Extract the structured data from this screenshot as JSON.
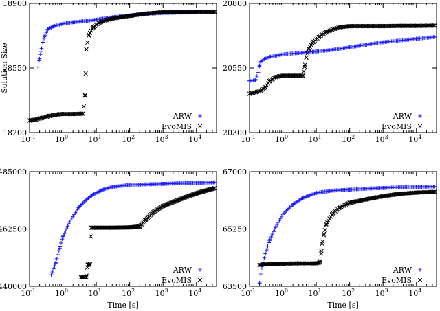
{
  "chart_data": [
    {
      "type": "scatter",
      "title": "",
      "xlabel": "",
      "ylabel": "Solution Size",
      "xscale": "log",
      "xlim": [
        0.1,
        40000
      ],
      "ylim": [
        18200,
        18900
      ],
      "yticks": [
        "18200",
        "18550",
        "18900"
      ],
      "yticks_values": [
        18200,
        18550,
        18900
      ],
      "xticks": [
        "-1",
        "0",
        "1",
        "2",
        "3",
        "4"
      ],
      "legend": [
        "ARW",
        "EvoMIS"
      ],
      "legend_position": "bottom-right",
      "series": [
        {
          "name": "ARW",
          "marker": "+",
          "color": "#1a1aff",
          "points": [
            [
              0.18,
              18555
            ],
            [
              0.2,
              18600
            ],
            [
              0.22,
              18640
            ],
            [
              0.25,
              18690
            ],
            [
              0.28,
              18720
            ],
            [
              0.35,
              18760
            ],
            [
              0.5,
              18775
            ],
            [
              1,
              18790
            ],
            [
              2,
              18798
            ],
            [
              5,
              18805
            ],
            [
              10,
              18812
            ],
            [
              30,
              18825
            ],
            [
              100,
              18835
            ],
            [
              300,
              18843
            ],
            [
              1000,
              18848
            ],
            [
              3000,
              18850
            ],
            [
              10000,
              18851
            ],
            [
              35000,
              18852
            ]
          ]
        },
        {
          "name": "EvoMIS",
          "marker": "x",
          "color": "#000000",
          "points": [
            [
              0.1,
              18265
            ],
            [
              0.15,
              18270
            ],
            [
              0.25,
              18280
            ],
            [
              0.4,
              18290
            ],
            [
              0.6,
              18295
            ],
            [
              0.8,
              18300
            ],
            [
              2,
              18300
            ],
            [
              4,
              18302
            ],
            [
              4.6,
              18400
            ],
            [
              4.8,
              18520
            ],
            [
              5,
              18650
            ],
            [
              6,
              18730
            ],
            [
              8,
              18770
            ],
            [
              12,
              18795
            ],
            [
              20,
              18810
            ],
            [
              50,
              18825
            ],
            [
              100,
              18832
            ],
            [
              300,
              18845
            ],
            [
              1000,
              18852
            ],
            [
              3000,
              18855
            ],
            [
              10000,
              18855
            ],
            [
              35000,
              18855
            ]
          ]
        }
      ]
    },
    {
      "type": "scatter",
      "title": "",
      "xlabel": "",
      "ylabel": "",
      "xscale": "log",
      "xlim": [
        0.1,
        40000
      ],
      "ylim": [
        20300,
        20800
      ],
      "yticks": [
        "20300",
        "20550",
        "20800"
      ],
      "yticks_values": [
        20300,
        20550,
        20800
      ],
      "xticks": [
        "-1",
        "0",
        "1",
        "2",
        "3",
        "4"
      ],
      "legend": [
        "ARW",
        "EvoMIS"
      ],
      "legend_position": "bottom-right",
      "series": [
        {
          "name": "ARW",
          "marker": "+",
          "color": "#1a1aff",
          "points": [
            [
              0.1,
              20500
            ],
            [
              0.15,
              20502
            ],
            [
              0.18,
              20530
            ],
            [
              0.2,
              20560
            ],
            [
              0.22,
              20575
            ],
            [
              0.28,
              20585
            ],
            [
              0.4,
              20593
            ],
            [
              1,
              20603
            ],
            [
              3,
              20608
            ],
            [
              10,
              20614
            ],
            [
              30,
              20620
            ],
            [
              100,
              20630
            ],
            [
              300,
              20640
            ],
            [
              1000,
              20650
            ],
            [
              3000,
              20656
            ],
            [
              10000,
              20663
            ],
            [
              35000,
              20670
            ]
          ]
        },
        {
          "name": "EvoMIS",
          "marker": "x",
          "color": "#000000",
          "points": [
            [
              0.1,
              20450
            ],
            [
              0.2,
              20460
            ],
            [
              0.3,
              20475
            ],
            [
              0.4,
              20500
            ],
            [
              0.6,
              20515
            ],
            [
              1,
              20520
            ],
            [
              2,
              20520
            ],
            [
              4,
              20520
            ],
            [
              4.5,
              20555
            ],
            [
              5,
              20590
            ],
            [
              6,
              20625
            ],
            [
              8,
              20650
            ],
            [
              12,
              20670
            ],
            [
              20,
              20690
            ],
            [
              50,
              20708
            ],
            [
              100,
              20712
            ],
            [
              300,
              20712
            ],
            [
              1000,
              20712
            ],
            [
              3000,
              20713
            ],
            [
              10000,
              20713
            ],
            [
              35000,
              20714
            ]
          ]
        }
      ]
    },
    {
      "type": "scatter",
      "title": "",
      "xlabel": "Time [s]",
      "ylabel": "",
      "xscale": "log",
      "xlim": [
        0.1,
        40000
      ],
      "ylim": [
        440000,
        485000
      ],
      "yticks": [
        "440000",
        "462500",
        "485000"
      ],
      "yticks_values": [
        440000,
        462500,
        485000
      ],
      "xticks": [
        "-1",
        "0",
        "1",
        "2",
        "3",
        "4"
      ],
      "legend": [
        "ARW",
        "EvoMIS"
      ],
      "legend_position": "bottom-right",
      "series": [
        {
          "name": "ARW",
          "marker": "+",
          "color": "#1a1aff",
          "points": [
            [
              0.45,
              444500
            ],
            [
              0.6,
              449000
            ],
            [
              0.8,
              455000
            ],
            [
              1,
              459500
            ],
            [
              1.5,
              464500
            ],
            [
              2,
              467500
            ],
            [
              3,
              471000
            ],
            [
              5,
              474000
            ],
            [
              8,
              476000
            ],
            [
              15,
              477800
            ],
            [
              30,
              479000
            ],
            [
              100,
              479800
            ],
            [
              300,
              480000
            ],
            [
              1000,
              480200
            ],
            [
              3000,
              480400
            ],
            [
              10000,
              480600
            ],
            [
              35000,
              480800
            ]
          ]
        },
        {
          "name": "EvoMIS",
          "marker": "x",
          "color": "#000000",
          "points": [
            [
              3.5,
              443500
            ],
            [
              4,
              443500
            ],
            [
              4.5,
              443500
            ],
            [
              5,
              443600
            ],
            [
              5.5,
              448500
            ],
            [
              6,
              448500
            ],
            [
              6.5,
              448600
            ],
            [
              7,
              463000
            ],
            [
              10,
              463000
            ],
            [
              30,
              463000
            ],
            [
              100,
              463100
            ],
            [
              200,
              463500
            ],
            [
              300,
              466000
            ],
            [
              500,
              469000
            ],
            [
              1000,
              471500
            ],
            [
              3000,
              474000
            ],
            [
              10000,
              476500
            ],
            [
              35000,
              478500
            ]
          ]
        }
      ]
    },
    {
      "type": "scatter",
      "title": "",
      "xlabel": "Time [s]",
      "ylabel": "",
      "xscale": "log",
      "xlim": [
        0.1,
        40000
      ],
      "ylim": [
        63500,
        67000
      ],
      "yticks": [
        "63500",
        "65250",
        "67000"
      ],
      "yticks_values": [
        63500,
        65250,
        67000
      ],
      "xticks": [
        "-1",
        "0",
        "1",
        "2",
        "3",
        "4"
      ],
      "legend": [
        "ARW",
        "EvoMIS"
      ],
      "legend_position": "bottom-right",
      "series": [
        {
          "name": "ARW",
          "marker": "+",
          "color": "#1a1aff",
          "points": [
            [
              0.2,
              63600
            ],
            [
              0.22,
              63900
            ],
            [
              0.25,
              64200
            ],
            [
              0.3,
              64500
            ],
            [
              0.4,
              64900
            ],
            [
              0.6,
              65300
            ],
            [
              1,
              65700
            ],
            [
              2,
              66000
            ],
            [
              4,
              66200
            ],
            [
              10,
              66350
            ],
            [
              30,
              66420
            ],
            [
              100,
              66450
            ],
            [
              300,
              66480
            ],
            [
              1000,
              66500
            ],
            [
              3000,
              66520
            ],
            [
              10000,
              66535
            ],
            [
              35000,
              66545
            ]
          ]
        },
        {
          "name": "EvoMIS",
          "marker": "x",
          "color": "#000000",
          "points": [
            [
              0.2,
              64150
            ],
            [
              0.3,
              64170
            ],
            [
              0.5,
              64180
            ],
            [
              1,
              64190
            ],
            [
              3,
              64200
            ],
            [
              10,
              64200
            ],
            [
              13,
              64230
            ],
            [
              14,
              64500
            ],
            [
              15,
              64800
            ],
            [
              17,
              65100
            ],
            [
              20,
              65400
            ],
            [
              30,
              65700
            ],
            [
              50,
              65900
            ],
            [
              100,
              66050
            ],
            [
              300,
              66150
            ],
            [
              1000,
              66250
            ],
            [
              3000,
              66320
            ],
            [
              10000,
              66360
            ],
            [
              35000,
              66380
            ]
          ]
        }
      ]
    }
  ]
}
